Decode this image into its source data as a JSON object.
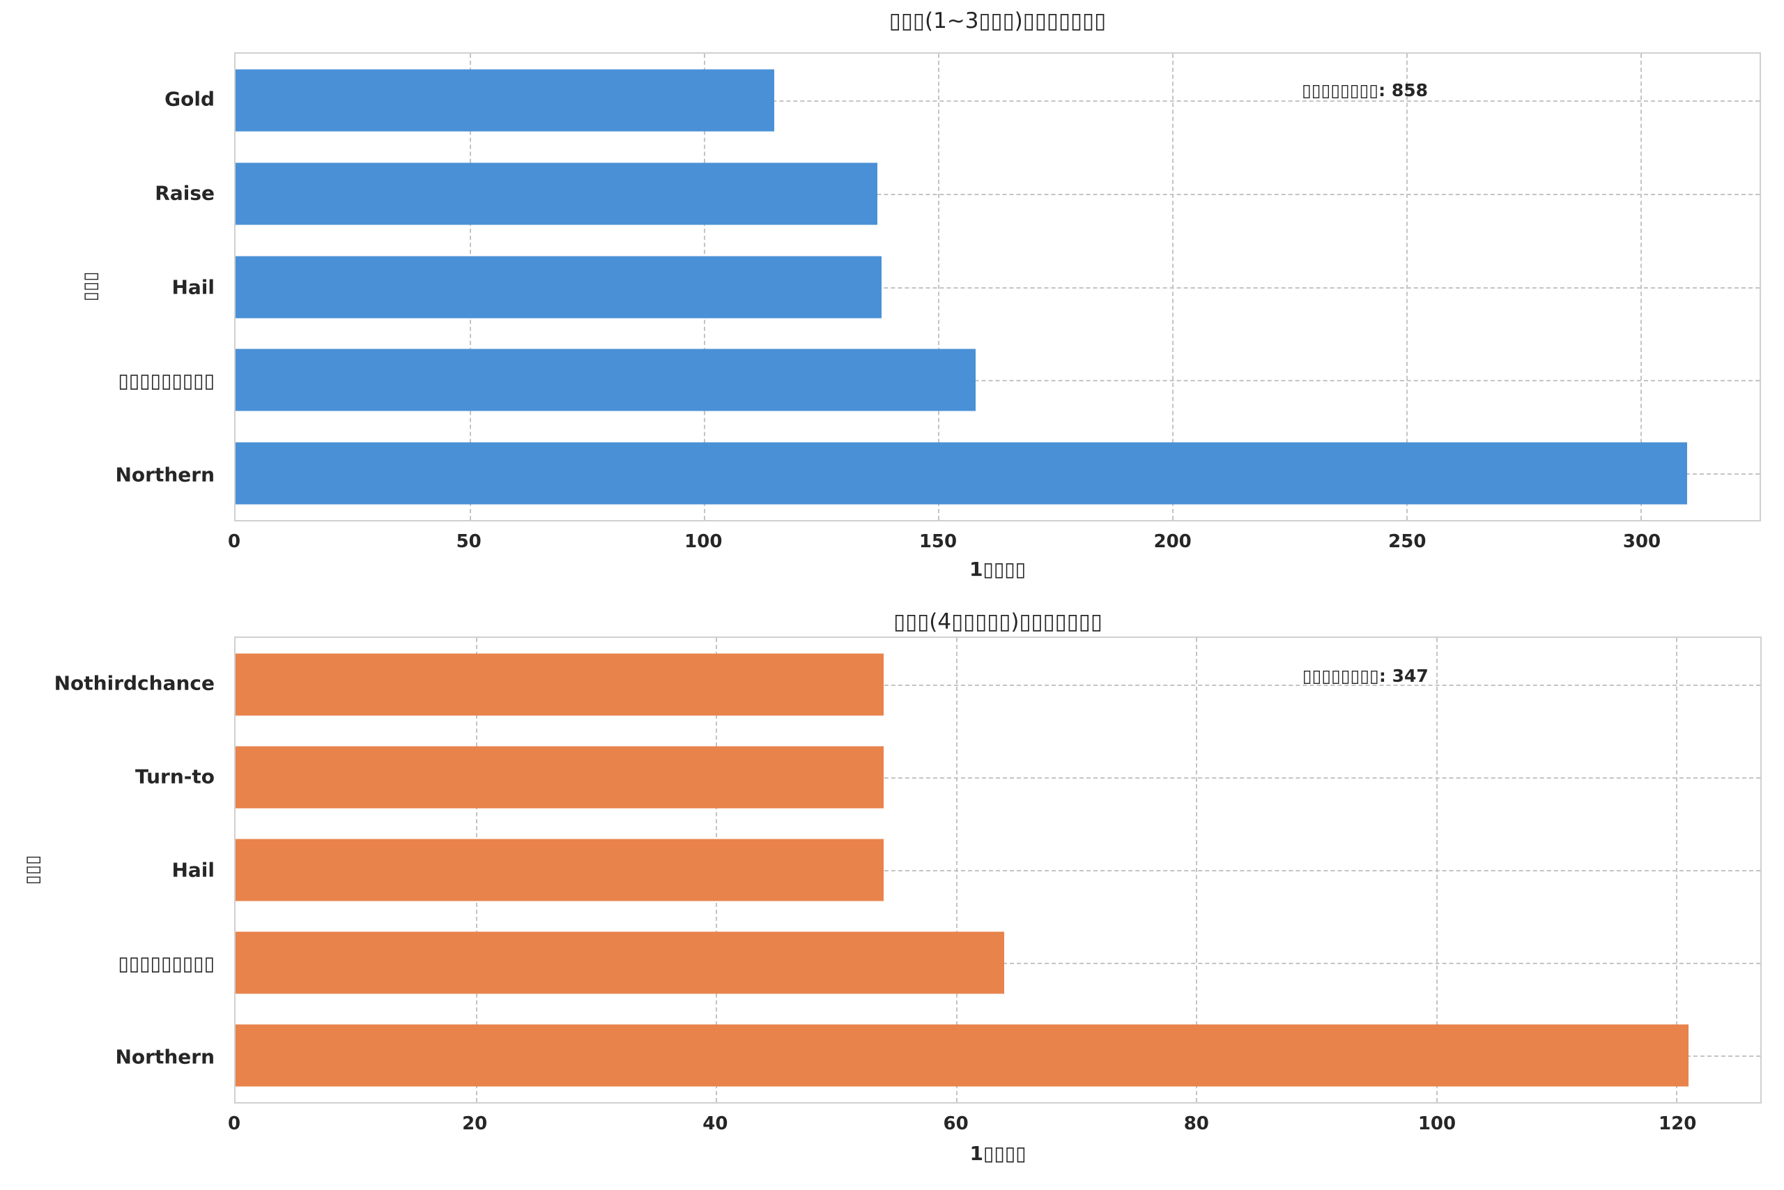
{
  "figure": {
    "background": "#ffffff",
    "text_color": "#262626",
    "grid_color": "#c4c4c4"
  },
  "chart_data": [
    {
      "type": "bar",
      "orientation": "horizontal",
      "title": "▯▯▯(1~3▯▯▯)▯▯▯▯▯▯▯",
      "categories": [
        "Gold",
        "Raise",
        "Hail",
        "▯▯▯▯▯▯▯▯▯",
        "Northern"
      ],
      "values": [
        115,
        137,
        138,
        158,
        310
      ],
      "xlabel": "1▯▯▯▯",
      "ylabel": "▯▯▯",
      "xticks": [
        0,
        50,
        100,
        150,
        200,
        250,
        300
      ],
      "xlim": [
        0,
        325.4
      ],
      "grid": "dashed",
      "legend": "none",
      "annotation": "▯▯▯▯▯▯▯▯: 858",
      "annotation_total": 858,
      "bar_color": "#4A90D6"
    },
    {
      "type": "bar",
      "orientation": "horizontal",
      "title": "▯▯▯(4▯▯▯▯▯)▯▯▯▯▯▯▯",
      "categories": [
        "Nothirdchance",
        "Turn-to",
        "Hail",
        "▯▯▯▯▯▯▯▯▯",
        "Northern"
      ],
      "values": [
        54,
        54,
        54,
        64,
        121
      ],
      "xlabel": "1▯▯▯▯",
      "ylabel": "▯▯▯",
      "xticks": [
        0,
        20,
        40,
        60,
        80,
        100,
        120
      ],
      "xlim": [
        0,
        127.0
      ],
      "grid": "dashed",
      "legend": "none",
      "annotation": "▯▯▯▯▯▯▯▯: 347",
      "annotation_total": 347,
      "bar_color": "#E8834B"
    }
  ]
}
